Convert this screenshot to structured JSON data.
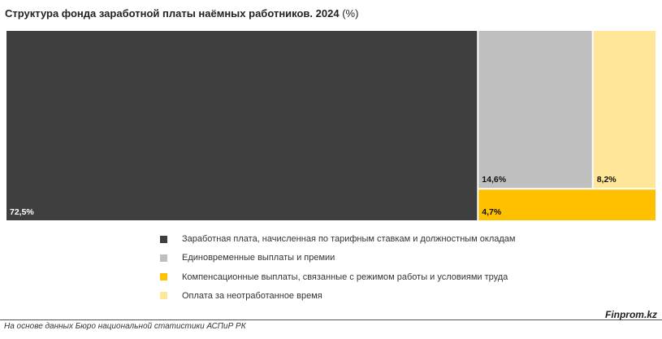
{
  "title": "Структура фонда заработной платы наёмных работников. 2024",
  "title_suffix": "(%)",
  "colors": {
    "dark": "#3f3f3f",
    "gray": "#bfbfbf",
    "yellow": "#ffc000",
    "light_yellow": "#ffe699"
  },
  "chart_data": {
    "type": "treemap",
    "title": "Структура фонда заработной платы наёмных работников. 2024 (%)",
    "unit": "%",
    "items": [
      {
        "name": "Заработная плата, начисленная по тарифным ставкам и должностным окладам",
        "value": 72.5,
        "label": "72,5%",
        "color": "#3f3f3f",
        "text_color": "#ffffff"
      },
      {
        "name": "Единовременные выплаты и премии",
        "value": 14.6,
        "label": "14,6%",
        "color": "#bfbfbf",
        "text_color": "#111111"
      },
      {
        "name": "Компенсационные выплаты, связанные с режимом работы и условиями труда",
        "value": 4.7,
        "label": "4,7%",
        "color": "#ffc000",
        "text_color": "#111111"
      },
      {
        "name": "Оплата за неотработанное время",
        "value": 8.2,
        "label": "8,2%",
        "color": "#ffe699",
        "text_color": "#111111"
      }
    ],
    "legend_position": "bottom"
  },
  "legend": [
    {
      "label": "Заработная плата, начисленная по тарифным ставкам и должностным окладам",
      "color": "#3f3f3f"
    },
    {
      "label": "Единовременные выплаты и премии",
      "color": "#bfbfbf"
    },
    {
      "label": "Компенсационные выплаты, связанные с режимом работы и условиями труда",
      "color": "#ffc000"
    },
    {
      "label": "Оплата за неотработанное время",
      "color": "#ffe699"
    }
  ],
  "footer": {
    "source": "На основе данных Бюро национальной статистики АСПиР РК",
    "brand": "Finprom.kz"
  }
}
